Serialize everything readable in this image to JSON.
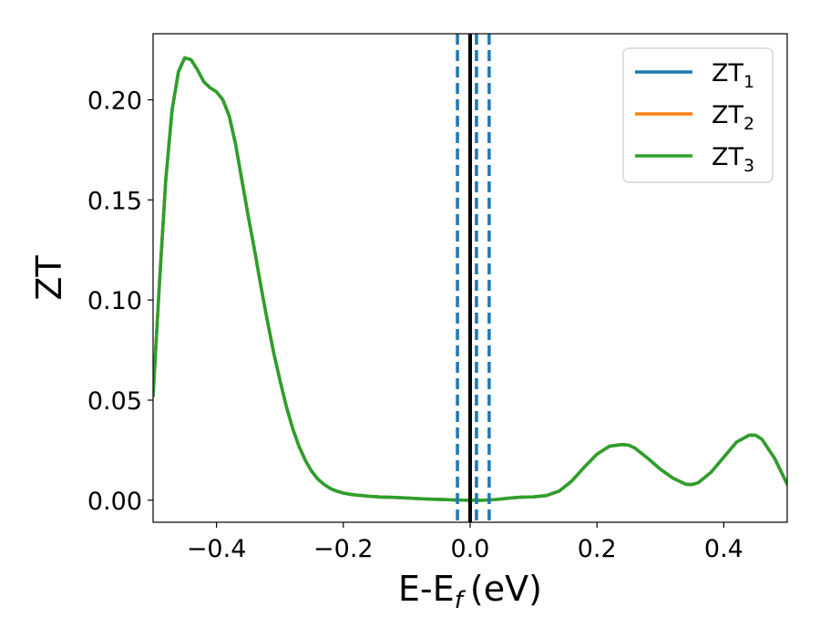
{
  "chart_data": {
    "type": "line",
    "xlabel": "E-E",
    "xlabel_sub": "f",
    "xlabel_unit": "(eV)",
    "ylabel": "ZT",
    "xlim": [
      -0.5,
      0.5
    ],
    "ylim": [
      -0.011,
      0.233
    ],
    "xticks": [
      -0.4,
      -0.2,
      0.0,
      0.2,
      0.4
    ],
    "xtick_labels": [
      "−0.4",
      "−0.2",
      "0.0",
      "0.2",
      "0.4"
    ],
    "yticks": [
      0.0,
      0.05,
      0.1,
      0.15,
      0.2
    ],
    "ytick_labels": [
      "0.00",
      "0.05",
      "0.10",
      "0.15",
      "0.20"
    ],
    "grid": false,
    "legend_position": "top-right",
    "x": [
      -0.5,
      -0.49,
      -0.48,
      -0.47,
      -0.46,
      -0.45,
      -0.44,
      -0.43,
      -0.42,
      -0.41,
      -0.4,
      -0.39,
      -0.38,
      -0.37,
      -0.36,
      -0.35,
      -0.34,
      -0.33,
      -0.32,
      -0.31,
      -0.3,
      -0.29,
      -0.28,
      -0.27,
      -0.26,
      -0.25,
      -0.24,
      -0.23,
      -0.22,
      -0.21,
      -0.2,
      -0.19,
      -0.18,
      -0.17,
      -0.16,
      -0.15,
      -0.14,
      -0.13,
      -0.12,
      -0.1,
      -0.08,
      -0.06,
      -0.04,
      -0.02,
      0.0,
      0.02,
      0.04,
      0.06,
      0.08,
      0.1,
      0.12,
      0.14,
      0.16,
      0.18,
      0.2,
      0.22,
      0.24,
      0.25,
      0.26,
      0.28,
      0.3,
      0.32,
      0.34,
      0.35,
      0.36,
      0.38,
      0.4,
      0.42,
      0.44,
      0.45,
      0.46,
      0.48,
      0.5
    ],
    "series": [
      {
        "name": "ZT",
        "sub": "1",
        "color": "#1f77b4",
        "values": [
          0.052,
          0.108,
          0.16,
          0.195,
          0.214,
          0.221,
          0.22,
          0.215,
          0.209,
          0.206,
          0.204,
          0.2,
          0.192,
          0.178,
          0.16,
          0.142,
          0.125,
          0.107,
          0.09,
          0.074,
          0.06,
          0.047,
          0.036,
          0.027,
          0.02,
          0.0145,
          0.0105,
          0.0078,
          0.0058,
          0.0045,
          0.0036,
          0.003,
          0.0026,
          0.0023,
          0.002,
          0.0018,
          0.0016,
          0.0015,
          0.0014,
          0.0011,
          0.0008,
          0.0005,
          0.0003,
          0.0001,
          0.0,
          0.0,
          0.0003,
          0.001,
          0.0015,
          0.0017,
          0.0023,
          0.0045,
          0.0095,
          0.0165,
          0.023,
          0.027,
          0.0278,
          0.0275,
          0.026,
          0.021,
          0.0155,
          0.011,
          0.008,
          0.0078,
          0.0088,
          0.014,
          0.0215,
          0.029,
          0.0325,
          0.0325,
          0.0305,
          0.021,
          0.008
        ]
      },
      {
        "name": "ZT",
        "sub": "2",
        "color": "#ff7f0e",
        "values": [
          0.052,
          0.108,
          0.16,
          0.195,
          0.214,
          0.221,
          0.22,
          0.215,
          0.209,
          0.206,
          0.204,
          0.2,
          0.192,
          0.178,
          0.16,
          0.142,
          0.125,
          0.107,
          0.09,
          0.074,
          0.06,
          0.047,
          0.036,
          0.027,
          0.02,
          0.0145,
          0.0105,
          0.0078,
          0.0058,
          0.0045,
          0.0036,
          0.003,
          0.0026,
          0.0023,
          0.002,
          0.0018,
          0.0016,
          0.0015,
          0.0014,
          0.0011,
          0.0008,
          0.0005,
          0.0003,
          0.0001,
          0.0,
          0.0,
          0.0003,
          0.001,
          0.0015,
          0.0017,
          0.0023,
          0.0045,
          0.0095,
          0.0165,
          0.023,
          0.027,
          0.0278,
          0.0275,
          0.026,
          0.021,
          0.0155,
          0.011,
          0.008,
          0.0078,
          0.0088,
          0.014,
          0.0215,
          0.029,
          0.0325,
          0.0325,
          0.0305,
          0.021,
          0.008
        ]
      },
      {
        "name": "ZT",
        "sub": "3",
        "color": "#2ca02c",
        "values": [
          0.052,
          0.108,
          0.16,
          0.195,
          0.214,
          0.221,
          0.22,
          0.215,
          0.209,
          0.206,
          0.204,
          0.2,
          0.192,
          0.178,
          0.16,
          0.142,
          0.125,
          0.107,
          0.09,
          0.074,
          0.06,
          0.047,
          0.036,
          0.027,
          0.02,
          0.0145,
          0.0105,
          0.0078,
          0.0058,
          0.0045,
          0.0036,
          0.003,
          0.0026,
          0.0023,
          0.002,
          0.0018,
          0.0016,
          0.0015,
          0.0014,
          0.0011,
          0.0008,
          0.0005,
          0.0003,
          0.0001,
          0.0,
          0.0,
          0.0003,
          0.001,
          0.0015,
          0.0017,
          0.0023,
          0.0045,
          0.0095,
          0.0165,
          0.023,
          0.027,
          0.0278,
          0.0275,
          0.026,
          0.021,
          0.0155,
          0.011,
          0.008,
          0.0078,
          0.0088,
          0.014,
          0.0215,
          0.029,
          0.0325,
          0.0325,
          0.0305,
          0.021,
          0.008
        ]
      }
    ],
    "vlines": [
      {
        "x": 0.0,
        "style": "solid",
        "color": "#000000"
      },
      {
        "x": -0.02,
        "style": "dashed",
        "color": "#1f77b4"
      },
      {
        "x": 0.01,
        "style": "dashed",
        "color": "#1f77b4"
      },
      {
        "x": 0.03,
        "style": "dashed",
        "color": "#1f77b4"
      }
    ]
  }
}
